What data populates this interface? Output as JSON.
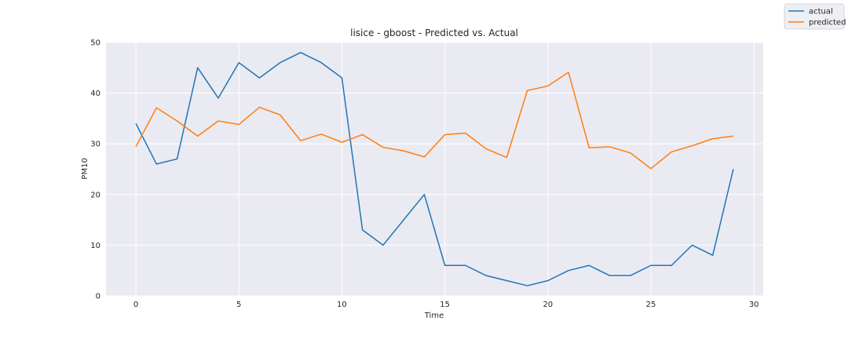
{
  "chart_data": {
    "type": "line",
    "title": "lisice - gboost - Predicted vs. Actual",
    "xlabel": "Time",
    "ylabel": "PM10",
    "xlim": [
      -1.45,
      30.45
    ],
    "ylim": [
      0,
      50
    ],
    "xticks": [
      0,
      5,
      10,
      15,
      20,
      25,
      30
    ],
    "yticks": [
      0,
      10,
      20,
      30,
      40,
      50
    ],
    "grid": true,
    "legend_position": "top-right",
    "x": [
      0,
      1,
      2,
      3,
      4,
      5,
      6,
      7,
      8,
      9,
      10,
      11,
      12,
      13,
      14,
      15,
      16,
      17,
      18,
      19,
      20,
      21,
      22,
      23,
      24,
      25,
      26,
      27,
      28,
      29
    ],
    "series": [
      {
        "name": "actual",
        "color": "#1f77b4",
        "values": [
          34,
          26,
          27,
          45,
          39,
          46,
          43,
          46,
          48,
          46,
          43,
          13,
          10,
          15,
          20,
          6,
          6,
          4,
          3,
          2,
          3,
          5,
          6,
          4,
          4,
          6,
          6,
          10,
          8,
          25
        ]
      },
      {
        "name": "predicted",
        "color": "#ff7f0e",
        "values": [
          29.4,
          37.1,
          34.5,
          31.5,
          34.5,
          33.8,
          37.2,
          35.7,
          30.6,
          31.9,
          30.3,
          31.8,
          29.3,
          28.6,
          27.4,
          31.8,
          32.1,
          29.0,
          27.3,
          40.5,
          41.4,
          44.1,
          29.2,
          29.4,
          28.2,
          25.1,
          28.4,
          29.6,
          31.0,
          31.5
        ]
      }
    ]
  }
}
